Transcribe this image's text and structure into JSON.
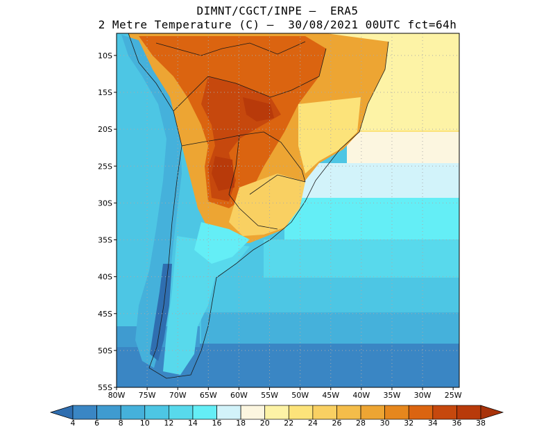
{
  "title_line1": "DIMNT/CGCT/INPE –  ERA5",
  "title_line2": "2 Metre Temperature (C) –  30/08/2021 00UTC fct=64h",
  "lon_labels": [
    "80W",
    "75W",
    "70W",
    "65W",
    "60W",
    "55W",
    "50W",
    "45W",
    "40W",
    "35W",
    "30W",
    "25W"
  ],
  "lon_values": [
    -80,
    -75,
    -70,
    -65,
    -60,
    -55,
    -50,
    -45,
    -40,
    -35,
    -30,
    -25
  ],
  "lat_labels": [
    "10S",
    "15S",
    "20S",
    "25S",
    "30S",
    "35S",
    "40S",
    "45S",
    "50S",
    "55S"
  ],
  "lat_values": [
    -10,
    -15,
    -20,
    -25,
    -30,
    -35,
    -40,
    -45,
    -50,
    -55
  ],
  "map_extent": {
    "lon_min": -80,
    "lon_max": -24,
    "lat_min": -55,
    "lat_max": -7
  },
  "colorbar": {
    "labels": [
      "4",
      "6",
      "8",
      "10",
      "12",
      "14",
      "16",
      "18",
      "20",
      "22",
      "24",
      "26",
      "28",
      "30",
      "32",
      "34",
      "36",
      "38"
    ],
    "colors": [
      "#2f6eb0",
      "#3a86c4",
      "#3f9bd0",
      "#45b1db",
      "#4dc6e4",
      "#58d9ec",
      "#64eef6",
      "#d2f3fa",
      "#fcf6e0",
      "#fdf3a6",
      "#fce37a",
      "#f9d062",
      "#f4bd4a",
      "#eda533",
      "#e6871d",
      "#db6410",
      "#c6480d",
      "#b83a0a",
      "#a8330a"
    ]
  }
}
